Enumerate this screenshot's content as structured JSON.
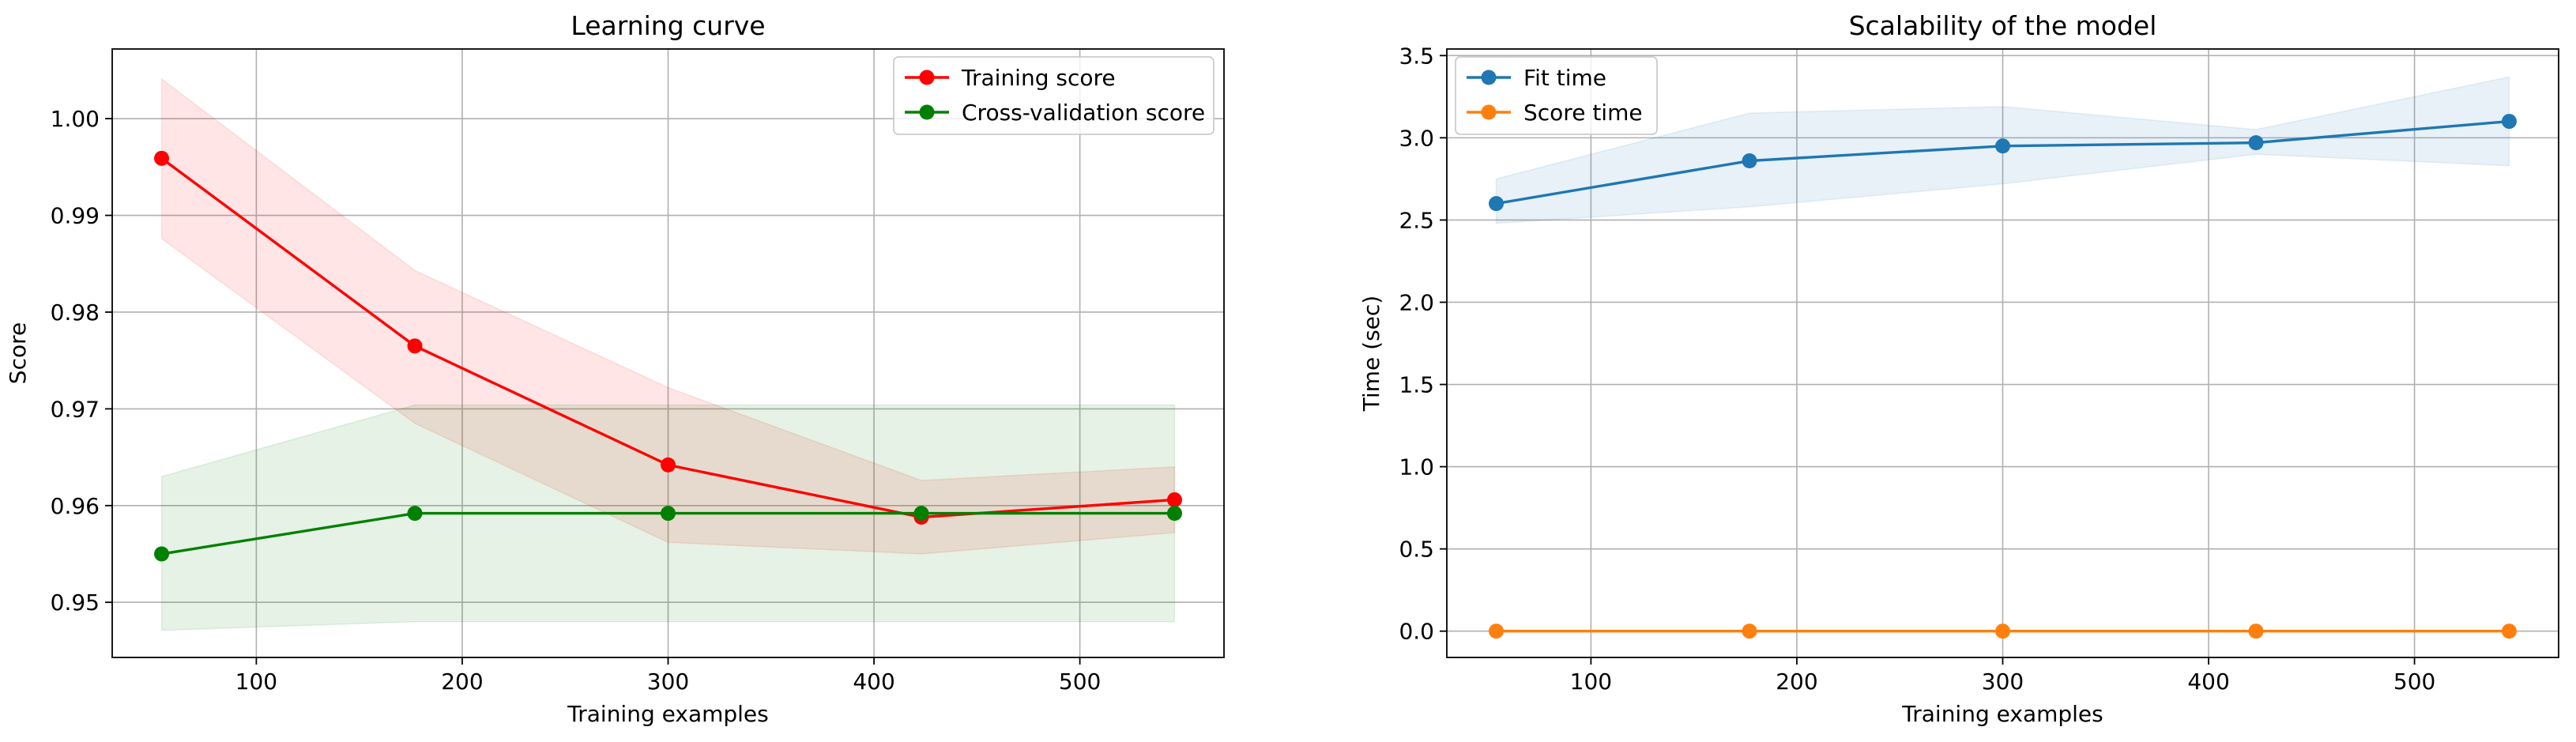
{
  "chart_data": [
    {
      "type": "line",
      "title": "Learning curve",
      "xlabel": "Training examples",
      "ylabel": "Score",
      "xlim": [
        30,
        570
      ],
      "ylim": [
        0.9443,
        1.0072
      ],
      "xticks": [
        100,
        200,
        300,
        400,
        500
      ],
      "yticks": [
        0.95,
        0.96,
        0.97,
        0.98,
        0.99,
        1.0
      ],
      "ytick_format": 2,
      "grid": true,
      "legend": "top-right",
      "x": [
        54,
        177,
        300,
        423,
        546
      ],
      "series": [
        {
          "name": "Training score",
          "color": "#ff0000",
          "values": [
            0.9959,
            0.9765,
            0.9642,
            0.9588,
            0.9606
          ],
          "band_low": [
            0.9876,
            0.9685,
            0.9562,
            0.955,
            0.9572
          ],
          "band_high": [
            1.0041,
            0.9843,
            0.9722,
            0.9626,
            0.964
          ],
          "band_color": "#ff0000",
          "band_opacity": 0.1
        },
        {
          "name": "Cross-validation score",
          "color": "#008000",
          "values": [
            0.955,
            0.9592,
            0.9592,
            0.9592,
            0.9592
          ],
          "band_low": [
            0.9471,
            0.948,
            0.948,
            0.948,
            0.948
          ],
          "band_high": [
            0.963,
            0.9704,
            0.9704,
            0.9704,
            0.9704
          ],
          "band_color": "#008000",
          "band_opacity": 0.1
        }
      ]
    },
    {
      "type": "line",
      "title": "Scalability of the model",
      "xlabel": "Training examples",
      "ylabel": "Time (sec)",
      "xlim": [
        30,
        570
      ],
      "ylim": [
        -0.16,
        3.54
      ],
      "xticks": [
        100,
        200,
        300,
        400,
        500
      ],
      "yticks": [
        0.0,
        0.5,
        1.0,
        1.5,
        2.0,
        2.5,
        3.0,
        3.5
      ],
      "ytick_format": 1,
      "grid": true,
      "legend": "top-left",
      "x": [
        54,
        177,
        300,
        423,
        546
      ],
      "series": [
        {
          "name": "Fit time",
          "color": "#1f77b4",
          "values": [
            2.6,
            2.86,
            2.95,
            2.97,
            3.1
          ],
          "band_low": [
            2.48,
            2.58,
            2.72,
            2.9,
            2.83
          ],
          "band_high": [
            2.75,
            3.15,
            3.19,
            3.05,
            3.37
          ],
          "band_color": "#1f77b4",
          "band_opacity": 0.1
        },
        {
          "name": "Score time",
          "color": "#ff7f0e",
          "values": [
            0.0,
            0.0,
            0.0,
            0.0,
            0.0
          ],
          "band_low": [
            0.0,
            0.0,
            0.0,
            0.0,
            0.0
          ],
          "band_high": [
            0.0,
            0.0,
            0.0,
            0.0,
            0.0
          ],
          "band_color": "#ff7f0e",
          "band_opacity": 0.1
        }
      ]
    }
  ]
}
